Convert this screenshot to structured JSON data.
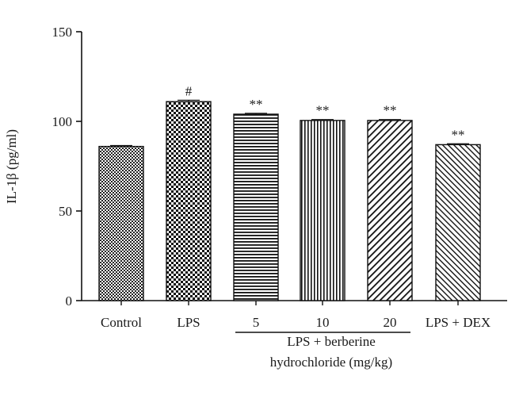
{
  "chart_data": {
    "type": "bar",
    "ylabel": "IL-1β (pg/ml)",
    "ylim": [
      0,
      150
    ],
    "yticks": [
      0,
      50,
      100,
      150
    ],
    "categories": [
      "Control",
      "LPS",
      "5",
      "10",
      "20",
      "LPS + DEX"
    ],
    "values": [
      86,
      111,
      104,
      100.5,
      100.5,
      87
    ],
    "errors": [
      0.5,
      0.8,
      0.5,
      0.5,
      0.5,
      0.5
    ],
    "annotations": [
      "",
      "#",
      "**",
      "**",
      "**",
      "**"
    ],
    "patterns": [
      "dots-dense",
      "checker",
      "horizontal-lines",
      "vertical-lines",
      "diagonal-lines",
      "diagonal-lines-fine"
    ],
    "group": {
      "label_line1": "LPS + berberine",
      "label_line2": "hydrochloride (mg/kg)",
      "members": [
        "5",
        "10",
        "20"
      ]
    },
    "grid": false,
    "legend": "none"
  }
}
